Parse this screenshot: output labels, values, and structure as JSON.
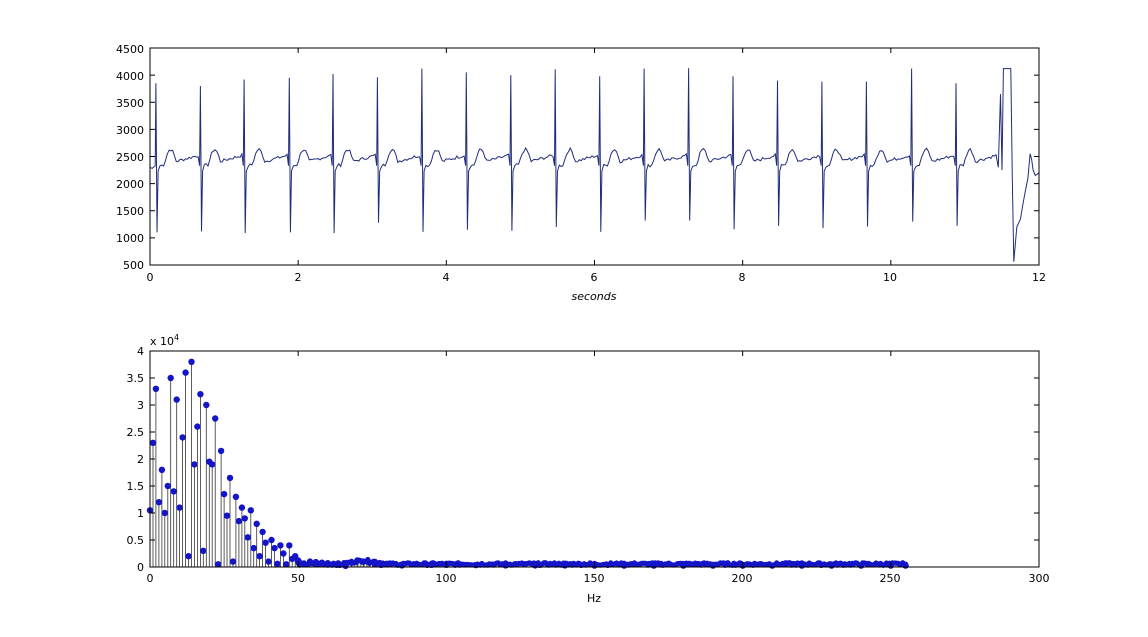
{
  "chart_data": [
    {
      "type": "line",
      "xlabel": "seconds",
      "ylabel": "",
      "xlim": [
        0,
        12
      ],
      "ylim": [
        500,
        4500
      ],
      "xticks": [
        "0",
        "2",
        "4",
        "6",
        "8",
        "10",
        "12"
      ],
      "yticks": [
        "500",
        "1000",
        "1500",
        "2000",
        "2500",
        "3000",
        "3500",
        "4000",
        "4500"
      ],
      "grid": false,
      "line_color": "#1f2d7a",
      "baseline": 2380,
      "beats": [
        {
          "t": 0.08,
          "peak": 3850,
          "trough": 1100
        },
        {
          "t": 0.68,
          "peak": 3800,
          "trough": 1120
        },
        {
          "t": 1.27,
          "peak": 3920,
          "trough": 1090
        },
        {
          "t": 1.88,
          "peak": 3950,
          "trough": 1100
        },
        {
          "t": 2.47,
          "peak": 4020,
          "trough": 1090
        },
        {
          "t": 3.07,
          "peak": 3960,
          "trough": 1280
        },
        {
          "t": 3.67,
          "peak": 4120,
          "trough": 1110
        },
        {
          "t": 4.27,
          "peak": 4050,
          "trough": 1150
        },
        {
          "t": 4.87,
          "peak": 4000,
          "trough": 1130
        },
        {
          "t": 5.47,
          "peak": 4110,
          "trough": 1200
        },
        {
          "t": 6.07,
          "peak": 3980,
          "trough": 1110
        },
        {
          "t": 6.67,
          "peak": 4120,
          "trough": 1320
        },
        {
          "t": 7.27,
          "peak": 4130,
          "trough": 1320
        },
        {
          "t": 7.87,
          "peak": 3980,
          "trough": 1160
        },
        {
          "t": 8.47,
          "peak": 3900,
          "trough": 1220
        },
        {
          "t": 9.07,
          "peak": 3880,
          "trough": 1180
        },
        {
          "t": 9.67,
          "peak": 3880,
          "trough": 1210
        },
        {
          "t": 10.28,
          "peak": 4120,
          "trough": 1300
        },
        {
          "t": 10.88,
          "peak": 3850,
          "trough": 1220
        }
      ],
      "tail": {
        "x": [
          11.45,
          11.48,
          11.5,
          11.52,
          11.56,
          11.6,
          11.62,
          11.64,
          11.66,
          11.7,
          11.75,
          11.78,
          11.8,
          11.82,
          11.85,
          11.88,
          11.9,
          11.92,
          11.95,
          12.0
        ],
        "y": [
          2300,
          3650,
          2250,
          4120,
          4120,
          4120,
          4120,
          2100,
          560,
          1200,
          1350,
          1600,
          1750,
          1900,
          2100,
          2550,
          2450,
          2250,
          2150,
          2200
        ]
      }
    },
    {
      "type": "scatter",
      "style": "stem",
      "xlabel": "Hz",
      "ylabel": "",
      "xlim": [
        0,
        300
      ],
      "ylim": [
        0,
        40000
      ],
      "xticks": [
        "0",
        "50",
        "100",
        "150",
        "200",
        "250",
        "300"
      ],
      "yticks": [
        "0",
        "0.5",
        "1",
        "1.5",
        "2",
        "2.5",
        "3",
        "3.5",
        "4"
      ],
      "y_exponent": "x 10",
      "y_exponent_power": "4",
      "grid": false,
      "marker_color": "#1414c8",
      "x": [
        0,
        1,
        2,
        3,
        4,
        5,
        6,
        7,
        8,
        9,
        10,
        11,
        12,
        13,
        14,
        15,
        16,
        17,
        18,
        19,
        20,
        21,
        22,
        23,
        24,
        25,
        26,
        27,
        28,
        29,
        30,
        31,
        32,
        33,
        34,
        35,
        36,
        37,
        38,
        39,
        40,
        41,
        42,
        43,
        44,
        45,
        46,
        47,
        48,
        49,
        50,
        52,
        54,
        56,
        58,
        60,
        62,
        64,
        66,
        68,
        70,
        72,
        74,
        76,
        78,
        80,
        85,
        90,
        95,
        100,
        110,
        120,
        130,
        140,
        150,
        160,
        170,
        180,
        190,
        200,
        210,
        220,
        230,
        240,
        250,
        255
      ],
      "y": [
        10500,
        23000,
        33000,
        12000,
        18000,
        10000,
        15000,
        35000,
        14000,
        31000,
        11000,
        24000,
        36000,
        2000,
        38000,
        19000,
        26000,
        32000,
        3000,
        30000,
        19500,
        19000,
        27500,
        500,
        21500,
        13500,
        9500,
        16500,
        1000,
        13000,
        8500,
        11000,
        9000,
        5500,
        10500,
        3500,
        8000,
        2000,
        6500,
        4500,
        1000,
        5000,
        3500,
        600,
        4000,
        2500,
        500,
        4000,
        1500,
        2000,
        1200,
        600,
        1000,
        900,
        800,
        700,
        600,
        400,
        200,
        800,
        1200,
        1000,
        800,
        500,
        400,
        600,
        300,
        500,
        400,
        400,
        350,
        300,
        300,
        300,
        250,
        250,
        250,
        250,
        250,
        250,
        250,
        250,
        250,
        250,
        250,
        250
      ]
    }
  ]
}
